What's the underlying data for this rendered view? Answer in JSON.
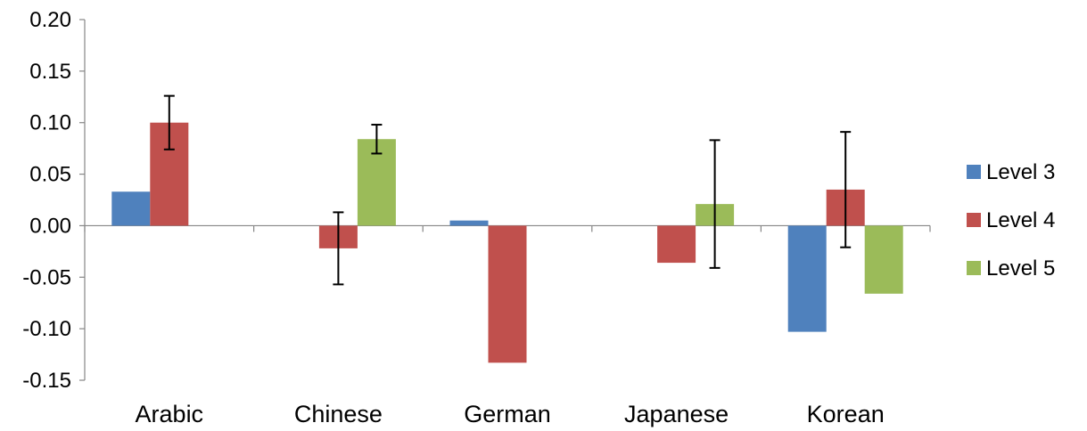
{
  "chart_data": {
    "type": "bar",
    "categories": [
      "Arabic",
      "Chinese",
      "German",
      "Japanese",
      "Korean"
    ],
    "series": [
      {
        "name": "Level 3",
        "color": "#4F81BD",
        "values": [
          0.033,
          null,
          0.005,
          null,
          -0.103
        ],
        "errors": [
          null,
          null,
          null,
          null,
          null
        ]
      },
      {
        "name": "Level 4",
        "color": "#C0504D",
        "values": [
          0.1,
          -0.022,
          -0.133,
          -0.036,
          0.035
        ],
        "errors": [
          0.026,
          0.035,
          null,
          null,
          0.056
        ]
      },
      {
        "name": "Level 5",
        "color": "#9BBB59",
        "values": [
          null,
          0.084,
          null,
          0.021,
          -0.066
        ],
        "errors": [
          null,
          0.014,
          null,
          0.062,
          null
        ]
      }
    ],
    "ylim": [
      -0.15,
      0.2
    ],
    "yticks": [
      "0.20",
      "0.15",
      "0.10",
      "0.05",
      "0.00",
      "-0.05",
      "-0.10",
      "-0.15"
    ],
    "ytick_values": [
      0.2,
      0.15,
      0.1,
      0.05,
      0.0,
      -0.05,
      -0.1,
      -0.15
    ],
    "grid": false,
    "legend": "right",
    "title": "",
    "xlabel": "",
    "ylabel": ""
  }
}
